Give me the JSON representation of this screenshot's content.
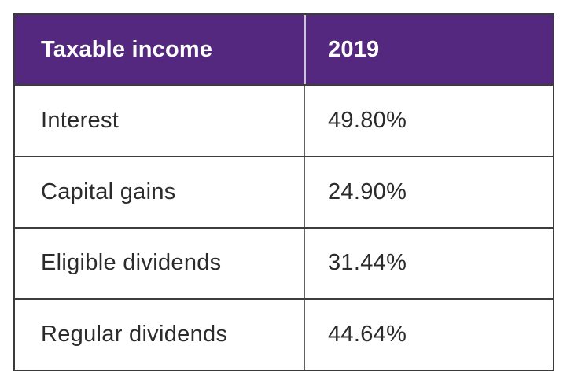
{
  "table": {
    "header": {
      "col1": "Taxable income",
      "col2": "2019"
    },
    "rows": [
      {
        "label": "Interest",
        "value": "49.80%"
      },
      {
        "label": "Capital gains",
        "value": "24.90%"
      },
      {
        "label": "Eligible dividends",
        "value": "31.44%"
      },
      {
        "label": "Regular dividends",
        "value": "44.64%"
      }
    ]
  },
  "colors": {
    "header_bg": "#54287e",
    "header_text": "#ffffff",
    "body_text": "#2b2b2b",
    "outer_border": "#3b3b3b",
    "row_divider": "#3d3d3d",
    "column_divider": "#616161",
    "header_column_divider": "#cfc2e2"
  },
  "chart_data": {
    "type": "table",
    "title": "",
    "columns": [
      "Taxable income",
      "2019"
    ],
    "rows": [
      [
        "Interest",
        "49.80%"
      ],
      [
        "Capital gains",
        "24.90%"
      ],
      [
        "Eligible dividends",
        "31.44%"
      ],
      [
        "Regular dividends",
        "44.64%"
      ]
    ],
    "values_numeric_percent": {
      "Interest": 49.8,
      "Capital gains": 24.9,
      "Eligible dividends": 31.44,
      "Regular dividends": 44.64
    },
    "legend_position": "none",
    "grid": true
  }
}
